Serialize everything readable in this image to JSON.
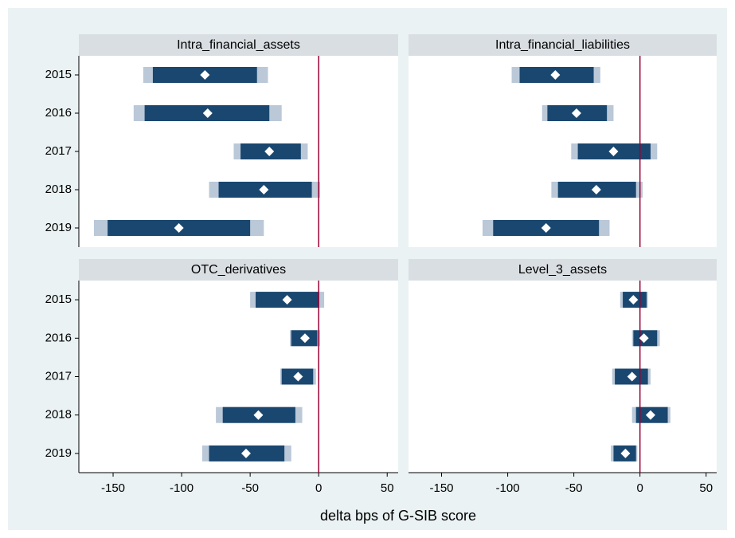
{
  "chart_data": {
    "type": "interval",
    "xlabel": "delta bps of G-SIB score",
    "categories": [
      "2015",
      "2016",
      "2017",
      "2018",
      "2019"
    ],
    "xlim": [
      -175,
      58
    ],
    "xticks": [
      -150,
      -100,
      -50,
      0,
      50
    ],
    "reference_line": 0,
    "colors": {
      "inner": "#1a476f",
      "outer": "#bac8d8",
      "point": "#ffffff",
      "reference": "#990033"
    },
    "panels": [
      {
        "title": "Intra_financial_assets",
        "values": [
          -83,
          -81,
          -36,
          -40,
          -102
        ],
        "inner_low": [
          -121,
          -127,
          -57,
          -73,
          -154
        ],
        "inner_high": [
          -45,
          -36,
          -13,
          -5,
          -50
        ],
        "outer_low": [
          -128,
          -135,
          -62,
          -80,
          -164
        ],
        "outer_high": [
          -37,
          -27,
          -8,
          1,
          -40
        ]
      },
      {
        "title": "Intra_financial_liabilities",
        "values": [
          -64,
          -48,
          -20,
          -33,
          -71
        ],
        "inner_low": [
          -91,
          -70,
          -47,
          -62,
          -111
        ],
        "inner_high": [
          -35,
          -25,
          8,
          -3,
          -31
        ],
        "outer_low": [
          -97,
          -74,
          -52,
          -67,
          -119
        ],
        "outer_high": [
          -30,
          -20,
          13,
          2,
          -23
        ]
      },
      {
        "title": "OTC_derivatives",
        "values": [
          -23,
          -10,
          -15,
          -44,
          -53
        ],
        "inner_low": [
          -46,
          -20,
          -27,
          -70,
          -80
        ],
        "inner_high": [
          0,
          -1,
          -4,
          -17,
          -25
        ],
        "outer_low": [
          -50,
          -21,
          -28,
          -75,
          -85
        ],
        "outer_high": [
          4,
          1,
          -2,
          -12,
          -20
        ]
      },
      {
        "title": "Level_3_assets",
        "values": [
          -5,
          3,
          -6,
          8,
          -11
        ],
        "inner_low": [
          -13,
          -5,
          -19,
          -3,
          -20
        ],
        "inner_high": [
          5,
          13,
          6,
          21,
          -3
        ],
        "outer_low": [
          -15,
          -6,
          -21,
          -6,
          -22
        ],
        "outer_high": [
          6,
          15,
          8,
          23,
          -2
        ]
      }
    ]
  }
}
